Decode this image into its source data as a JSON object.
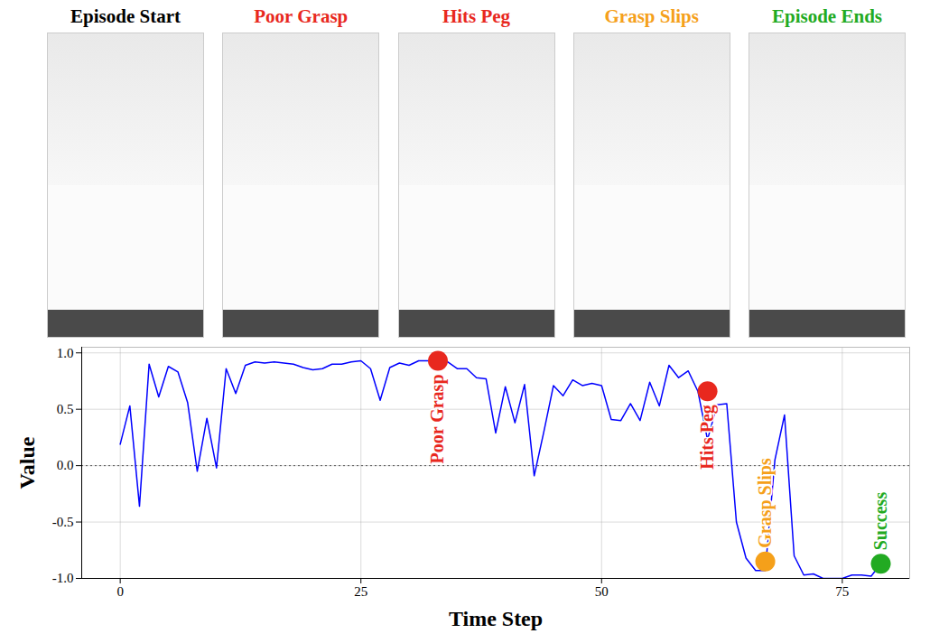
{
  "panels": [
    {
      "title": "Episode Start",
      "color": "#000000"
    },
    {
      "title": "Poor Grasp",
      "color": "#e8281e"
    },
    {
      "title": "Hits Peg",
      "color": "#e8281e"
    },
    {
      "title": "Grasp Slips",
      "color": "#f5a01a"
    },
    {
      "title": "Episode Ends",
      "color": "#22aa22"
    }
  ],
  "chart_data": {
    "type": "line",
    "x_label": "Time Step",
    "y_label": "Value",
    "x": [
      0,
      1,
      2,
      3,
      4,
      5,
      6,
      7,
      8,
      9,
      10,
      11,
      12,
      13,
      14,
      15,
      16,
      17,
      18,
      19,
      20,
      21,
      22,
      23,
      24,
      25,
      26,
      27,
      28,
      29,
      30,
      31,
      32,
      33,
      34,
      35,
      36,
      37,
      38,
      39,
      40,
      41,
      42,
      43,
      44,
      45,
      46,
      47,
      48,
      49,
      50,
      51,
      52,
      53,
      54,
      55,
      56,
      57,
      58,
      59,
      60,
      61,
      62,
      63,
      64,
      65,
      66,
      67,
      68,
      69,
      70,
      71,
      72,
      73,
      74,
      75,
      76,
      77,
      78,
      79
    ],
    "series": [
      {
        "name": "Value",
        "color": "#0000ff",
        "values": [
          0.19,
          0.53,
          -0.36,
          0.9,
          0.61,
          0.88,
          0.83,
          0.56,
          -0.05,
          0.42,
          -0.02,
          0.86,
          0.64,
          0.89,
          0.92,
          0.91,
          0.92,
          0.91,
          0.9,
          0.87,
          0.85,
          0.86,
          0.9,
          0.9,
          0.92,
          0.93,
          0.86,
          0.58,
          0.87,
          0.91,
          0.89,
          0.93,
          0.93,
          0.93,
          0.92,
          0.86,
          0.86,
          0.78,
          0.77,
          0.29,
          0.7,
          0.38,
          0.72,
          -0.09,
          0.3,
          0.71,
          0.62,
          0.76,
          0.71,
          0.73,
          0.71,
          0.41,
          0.4,
          0.55,
          0.4,
          0.74,
          0.53,
          0.89,
          0.78,
          0.84,
          0.66,
          0.23,
          0.54,
          0.55,
          -0.5,
          -0.82,
          -0.93,
          -0.93,
          0.05,
          0.45,
          -0.8,
          -0.97,
          -0.96,
          -1.0,
          -1.0,
          -1.0,
          -0.97,
          -0.97,
          -0.98,
          -0.87
        ]
      }
    ],
    "xlim": [
      -4,
      82
    ],
    "xticks": [
      0,
      25,
      50,
      75
    ],
    "ylim": [
      -1,
      1.05
    ],
    "yticks": [
      {
        "value": -1,
        "label": "-1.0"
      },
      {
        "value": -0.5,
        "label": "-0.5"
      },
      {
        "value": 0,
        "label": "0.0"
      },
      {
        "value": 0.5,
        "label": "0.5"
      },
      {
        "value": 1,
        "label": "1.0"
      }
    ],
    "baseline": 0,
    "grid": true,
    "annotations": [
      {
        "x": 33,
        "y": 0.93,
        "text": "Poor Grasp",
        "color": "#e8281e"
      },
      {
        "x": 61,
        "y": 0.66,
        "text": "Hits Peg",
        "color": "#e8281e"
      },
      {
        "x": 67,
        "y": -0.85,
        "text": "Grasp Slips",
        "color": "#f5a01a"
      },
      {
        "x": 79,
        "y": -0.87,
        "text": "Success",
        "color": "#22aa22"
      }
    ]
  }
}
